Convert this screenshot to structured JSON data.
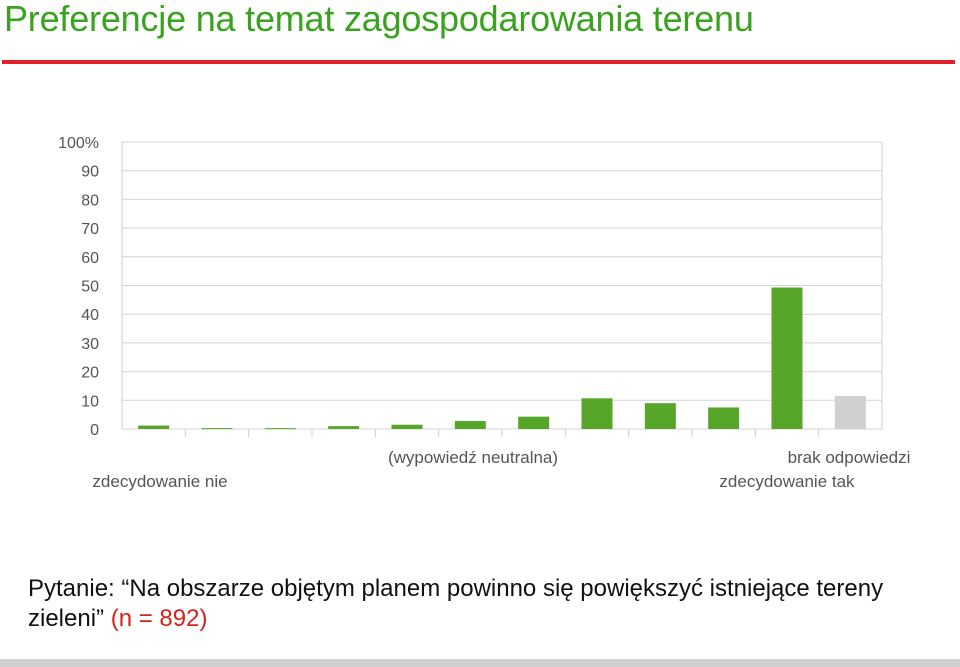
{
  "slide": {
    "title": "Preferencje na temat zagospodarowania terenu",
    "question_prefix": "Pytanie: ",
    "question_text": "“Na obszarze objętym planem powinno się powiększyć istniejące tereny zieleni”",
    "sample_label": "(n = 892)"
  },
  "colors": {
    "title": "#39a21f",
    "rule": "#e0202a",
    "bar": "#57a529",
    "bar_no_answer": "#d0d0d0",
    "sample": "#d6221c"
  },
  "chart_data": {
    "type": "bar",
    "y_ticks": [
      "100%",
      "90",
      "80",
      "70",
      "60",
      "50",
      "40",
      "30",
      "20",
      "10",
      "0"
    ],
    "ylim": [
      0,
      100
    ],
    "grid": true,
    "legend": "none",
    "values": [
      1.2,
      0.3,
      0.3,
      1.0,
      1.5,
      2.8,
      4.3,
      10.7,
      9.0,
      7.5,
      49.3,
      11.5
    ],
    "category_labels": {
      "first": "zdecydowanie nie",
      "middle": "(wypowiedź neutralna)",
      "tenth": "zdecydowanie tak",
      "last": "brak odpowiedzi"
    }
  }
}
